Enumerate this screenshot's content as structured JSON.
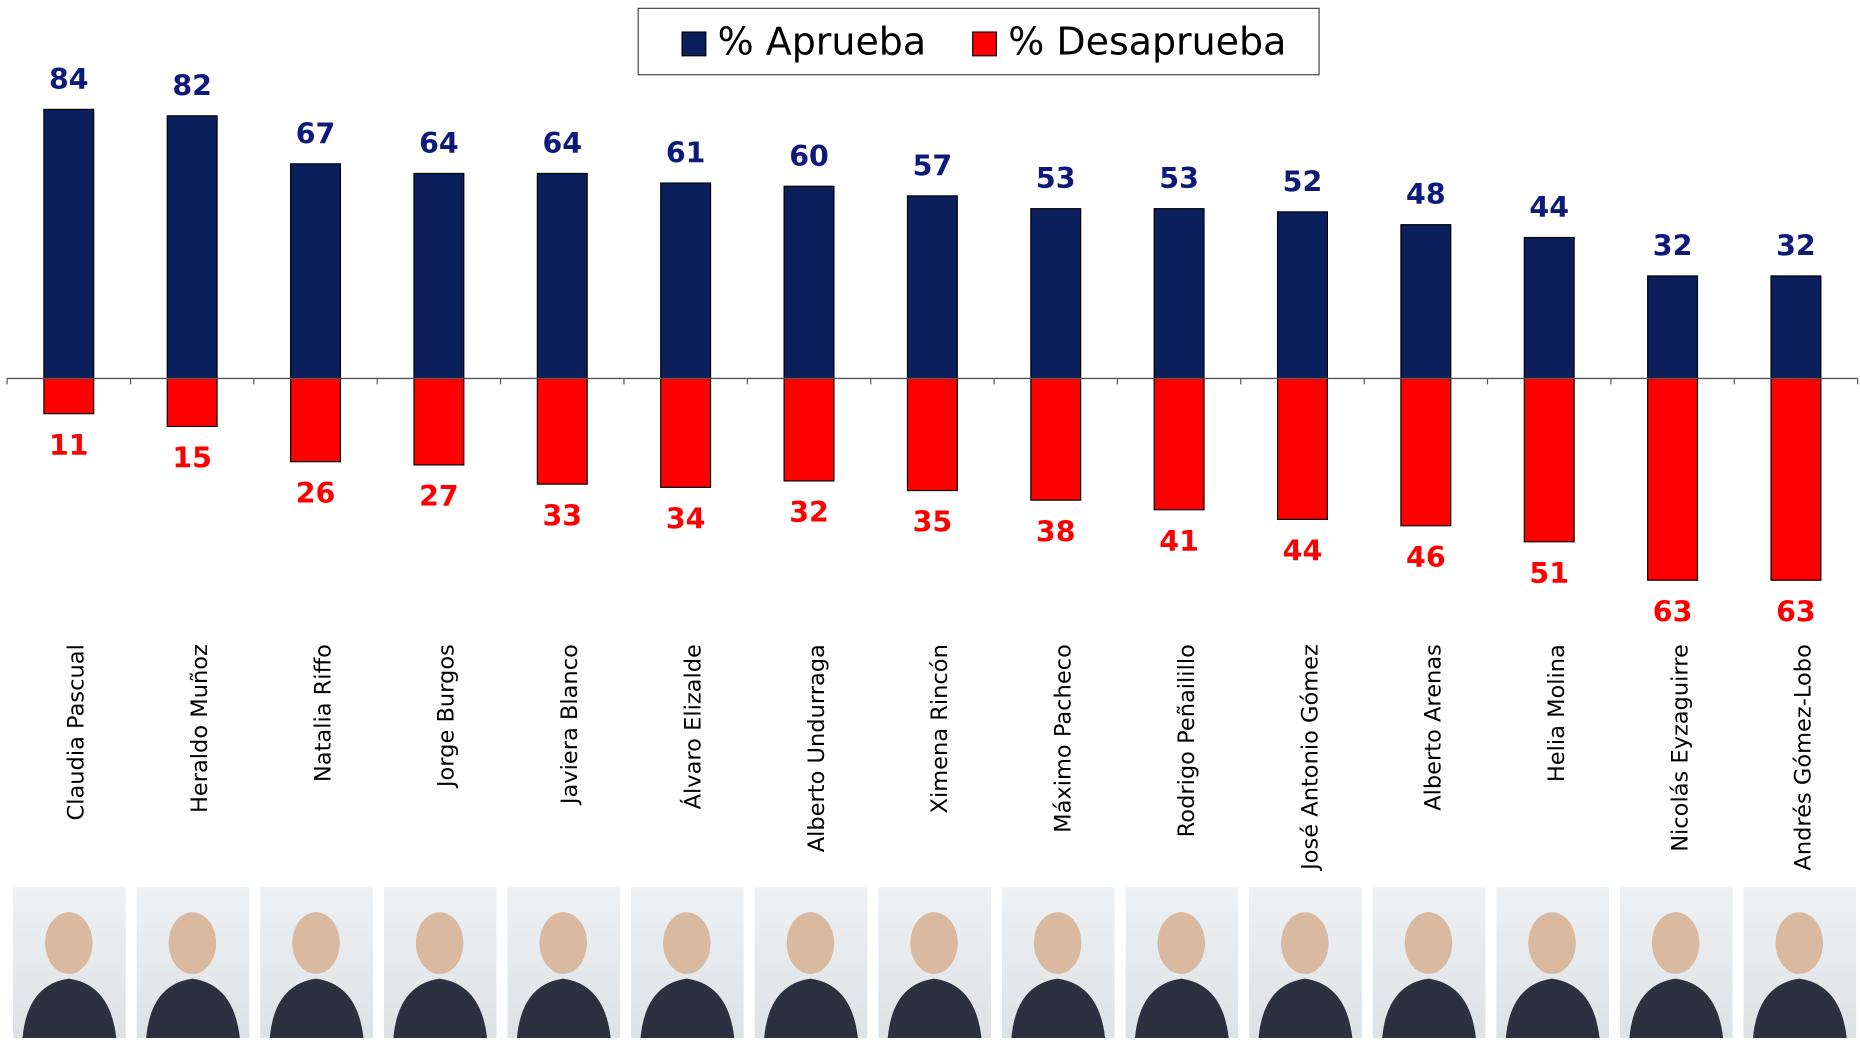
{
  "chart_data": {
    "type": "bar",
    "diverging": true,
    "categories": [
      "Claudia Pascual",
      "Heraldo Muñoz",
      "Natalia Riffo",
      "Jorge Burgos",
      "Javiera Blanco",
      "Álvaro Elizalde",
      "Alberto Undurraga",
      "Ximena Rincón",
      "Máximo Pacheco",
      "Rodrigo Peñailillo",
      "José Antonio Gómez",
      "Alberto Arenas",
      "Helia Molina",
      "Nicolás Eyzaguirre",
      "Andrés Gómez-Lobo"
    ],
    "series": [
      {
        "name": "% Aprueba",
        "color": "#0a1f5c",
        "label_color": "#0d1a7a",
        "values": [
          84,
          82,
          67,
          64,
          64,
          61,
          60,
          57,
          53,
          53,
          52,
          48,
          44,
          32,
          32
        ]
      },
      {
        "name": "% Desaprueba",
        "color": "#ff0000",
        "label_color": "#ff0000",
        "values": [
          11,
          15,
          26,
          27,
          33,
          34,
          32,
          35,
          38,
          41,
          44,
          46,
          51,
          63,
          63
        ]
      }
    ],
    "legend": "top"
  }
}
